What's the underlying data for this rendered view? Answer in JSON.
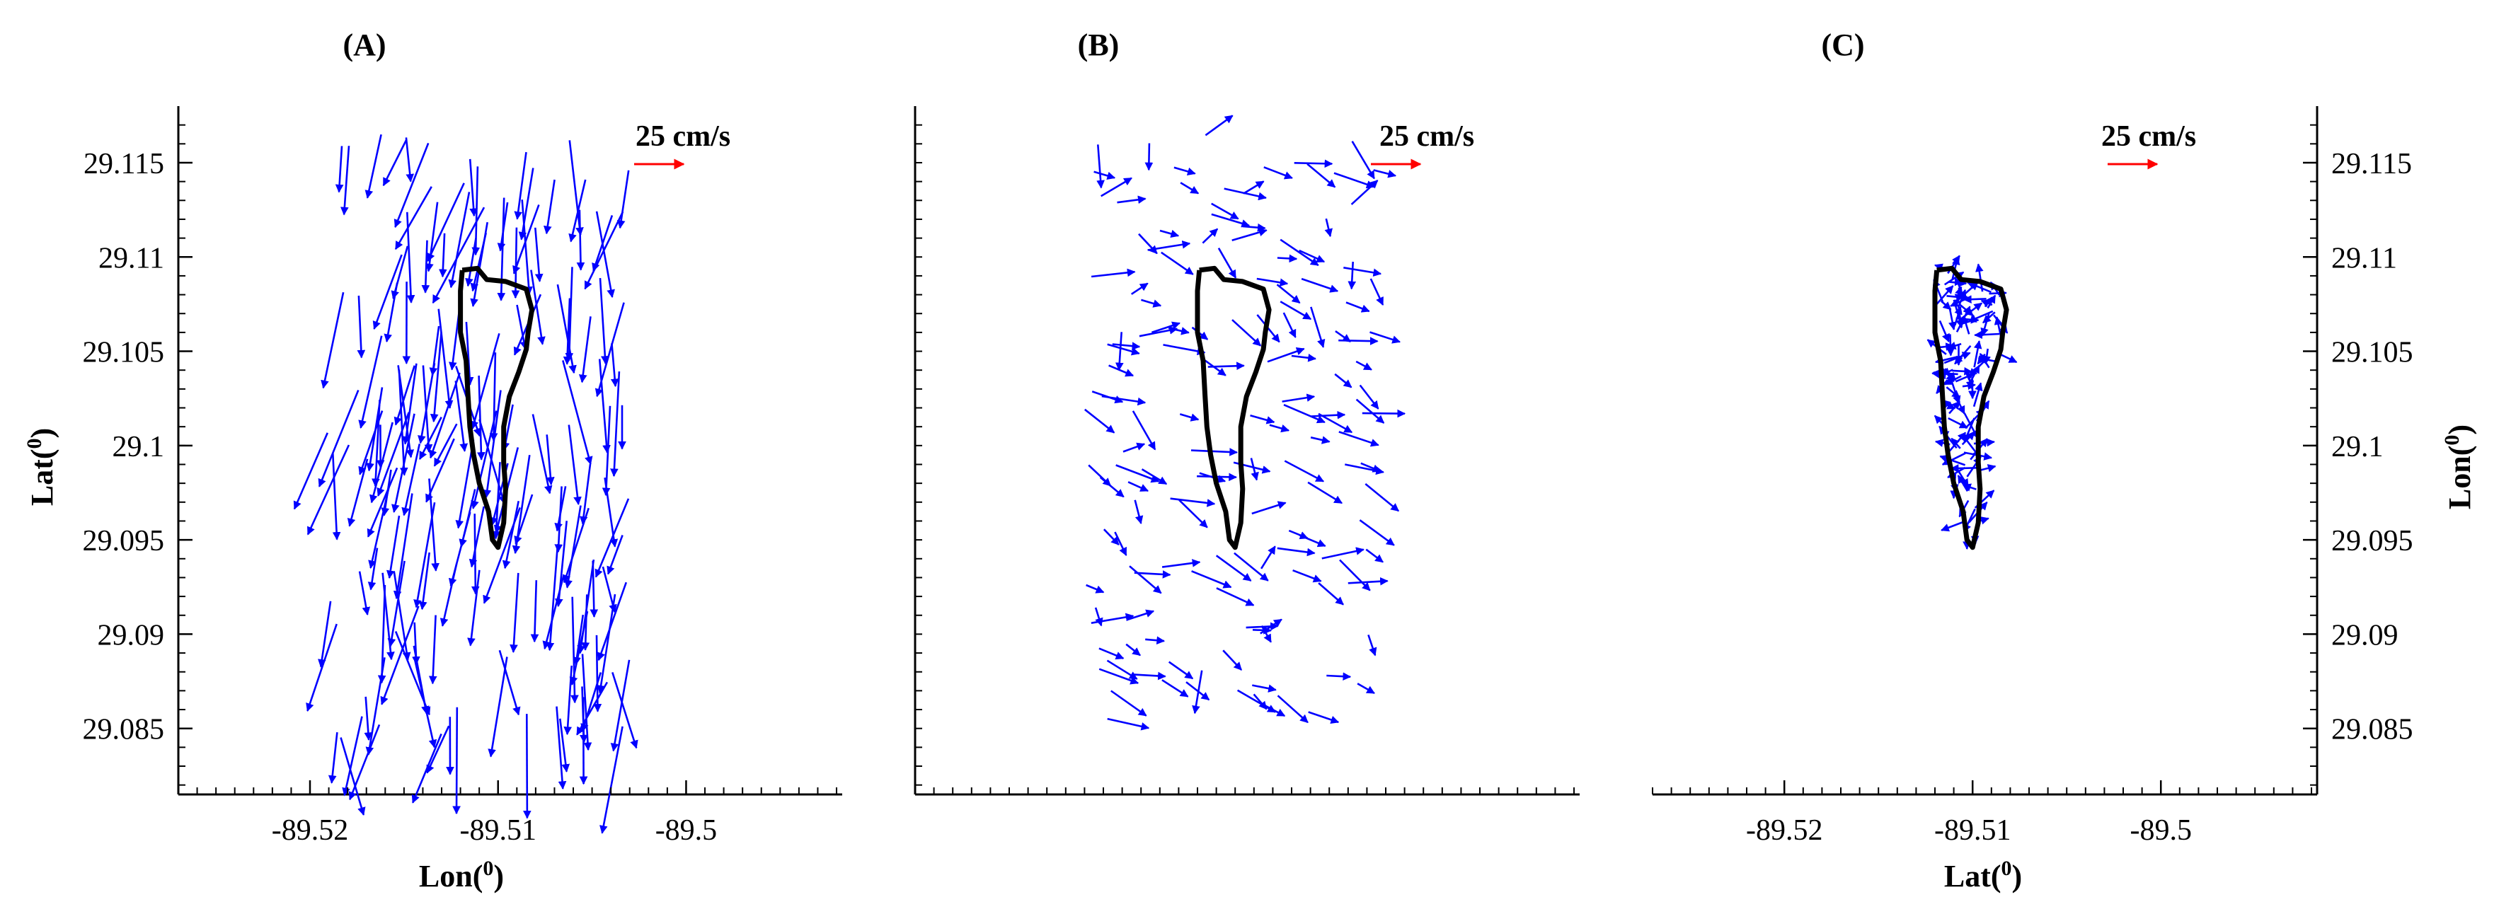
{
  "colors": {
    "vector": "#0000ff",
    "scale_arrow": "#ff0000",
    "outline": "#000000",
    "axis": "#000000"
  },
  "chart_data": [
    {
      "type": "vector-field",
      "panel_label": "(A)",
      "xlabel": "Lon(0)",
      "ylabel": "Lat(0)",
      "ylabel_side": "left",
      "xlim": [
        -89.527,
        -89.4917
      ],
      "ylim": [
        29.0815,
        29.118
      ],
      "x_ticks": [
        -89.52,
        -89.51,
        -89.5
      ],
      "x_tick_labels": [
        "-89.52",
        "-89.51",
        "-89.5"
      ],
      "y_ticks": [
        29.085,
        29.09,
        29.095,
        29.1,
        29.105,
        29.11,
        29.115
      ],
      "y_tick_labels": [
        "29.085",
        "29.09",
        "29.095",
        "29.1",
        "29.105",
        "29.11",
        "29.115"
      ],
      "scale_label": "25 cm/s",
      "scale_speed_cm_s": 25,
      "region": "outer",
      "n_vectors": 180,
      "dominant_direction_deg": 265,
      "direction_spread_deg": 18,
      "mean_speed_cm_s": 38,
      "seed": 11
    },
    {
      "type": "vector-field",
      "panel_label": "(B)",
      "xlabel": "",
      "ylabel": "",
      "ylabel_side": "left",
      "xlim": [
        -89.527,
        -89.4917
      ],
      "ylim": [
        29.0815,
        29.118
      ],
      "x_ticks": [],
      "x_tick_labels": [],
      "y_ticks": [],
      "y_tick_labels": [],
      "scale_label": "25 cm/s",
      "scale_speed_cm_s": 25,
      "region": "outer",
      "n_vectors": 150,
      "dominant_direction_deg": 335,
      "direction_spread_deg": 45,
      "mean_speed_cm_s": 16,
      "seed": 23
    },
    {
      "type": "vector-field",
      "panel_label": "(C)",
      "xlabel": "Lat(0)",
      "ylabel": "Lon(0)",
      "ylabel_side": "right",
      "xlim": [
        -89.527,
        -89.4917
      ],
      "ylim": [
        29.0815,
        29.118
      ],
      "x_ticks": [
        -89.52,
        -89.51,
        -89.5
      ],
      "x_tick_labels": [
        "-89.52",
        "-89.51",
        "-89.5"
      ],
      "y_ticks": [
        29.085,
        29.09,
        29.095,
        29.1,
        29.105,
        29.11,
        29.115
      ],
      "y_tick_labels": [
        "29.085",
        "29.09",
        "29.095",
        "29.1",
        "29.105",
        "29.11",
        "29.115"
      ],
      "scale_label": "25 cm/s",
      "scale_speed_cm_s": 25,
      "region": "inner",
      "n_vectors": 110,
      "dominant_direction_deg": 0,
      "direction_spread_deg": 180,
      "mean_speed_cm_s": 10,
      "seed": 37
    }
  ],
  "outline": {
    "lon": [
      -89.5119,
      -89.5111,
      -89.5106,
      -89.5096,
      -89.5085,
      -89.5082,
      -89.5084,
      -89.5085,
      -89.5089,
      -89.5094,
      -89.5097,
      -89.5097,
      -89.5096,
      -89.5097,
      -89.51,
      -89.5103,
      -89.5105,
      -89.511,
      -89.5113,
      -89.5115,
      -89.5116,
      -89.5117,
      -89.512,
      -89.512,
      -89.5119
    ],
    "lat": [
      29.1093,
      29.1094,
      29.1088,
      29.1087,
      29.1083,
      29.1072,
      29.106,
      29.1051,
      29.1039,
      29.1026,
      29.101,
      29.0991,
      29.0977,
      29.0959,
      29.0946,
      29.095,
      29.0965,
      29.098,
      29.0995,
      29.101,
      29.1027,
      29.1045,
      29.106,
      29.1082,
      29.1093
    ]
  }
}
